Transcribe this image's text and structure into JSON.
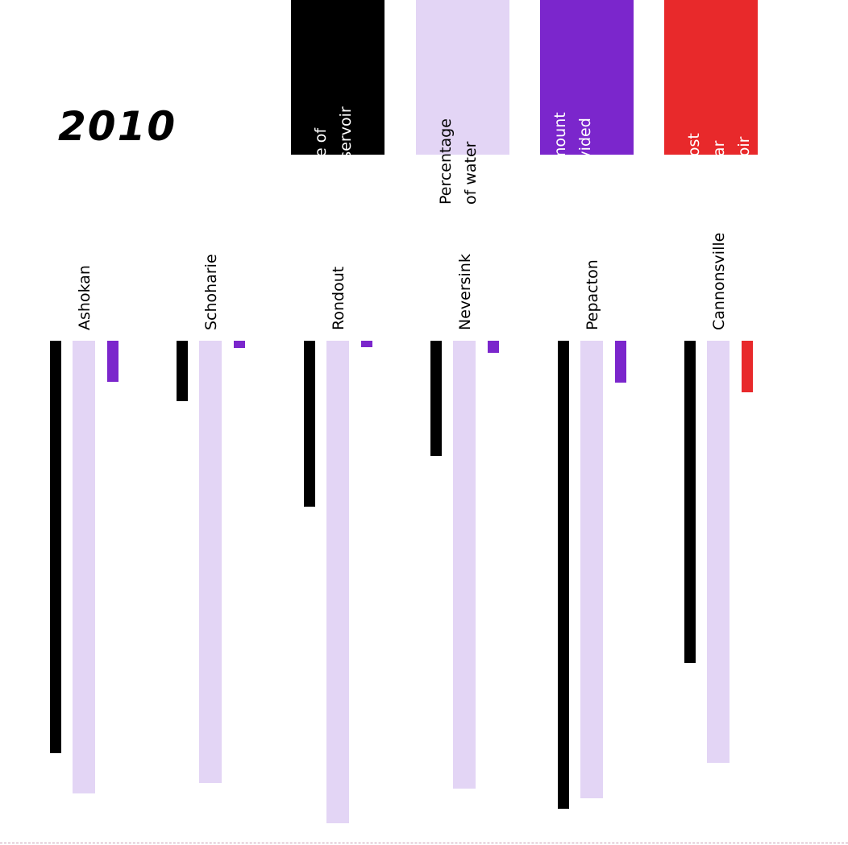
{
  "chart_data": {
    "type": "bar",
    "orientation": "vertical-downward",
    "title": "2010",
    "categories": [
      "Ashokan",
      "Schoharie",
      "Rondout",
      "Neversink",
      "Pepacton",
      "Cannonsville"
    ],
    "series": [
      {
        "name": "Volume of the reservoir",
        "color": "#000000",
        "values": [
          512,
          75,
          206,
          143,
          581,
          400
        ]
      },
      {
        "name": "Percentage of water",
        "color": "#e3d5f5",
        "values": [
          562,
          549,
          599,
          556,
          568,
          524
        ]
      },
      {
        "name": "The amount of provided water",
        "color": "#7b26cc",
        "values": [
          51,
          9,
          8,
          15,
          52,
          null
        ]
      },
      {
        "name": "The most popular reservoir",
        "color": "#e8292b",
        "values": [
          null,
          null,
          null,
          null,
          null,
          64
        ]
      }
    ],
    "legend": [
      {
        "text": "Volume of the reservoir",
        "bg": "#000000",
        "fg": "#ffffff"
      },
      {
        "text": "Percentage of water",
        "bg": "#e3d5f5",
        "fg": "#000000"
      },
      {
        "text": "The amount of provided water",
        "bg": "#7b26cc",
        "fg": "#ffffff"
      },
      {
        "text": "The most pop-ular reservoir",
        "bg": "#e8292b",
        "fg": "#ffffff"
      }
    ],
    "legend_placement": "top",
    "axes": "none",
    "grid": false
  }
}
